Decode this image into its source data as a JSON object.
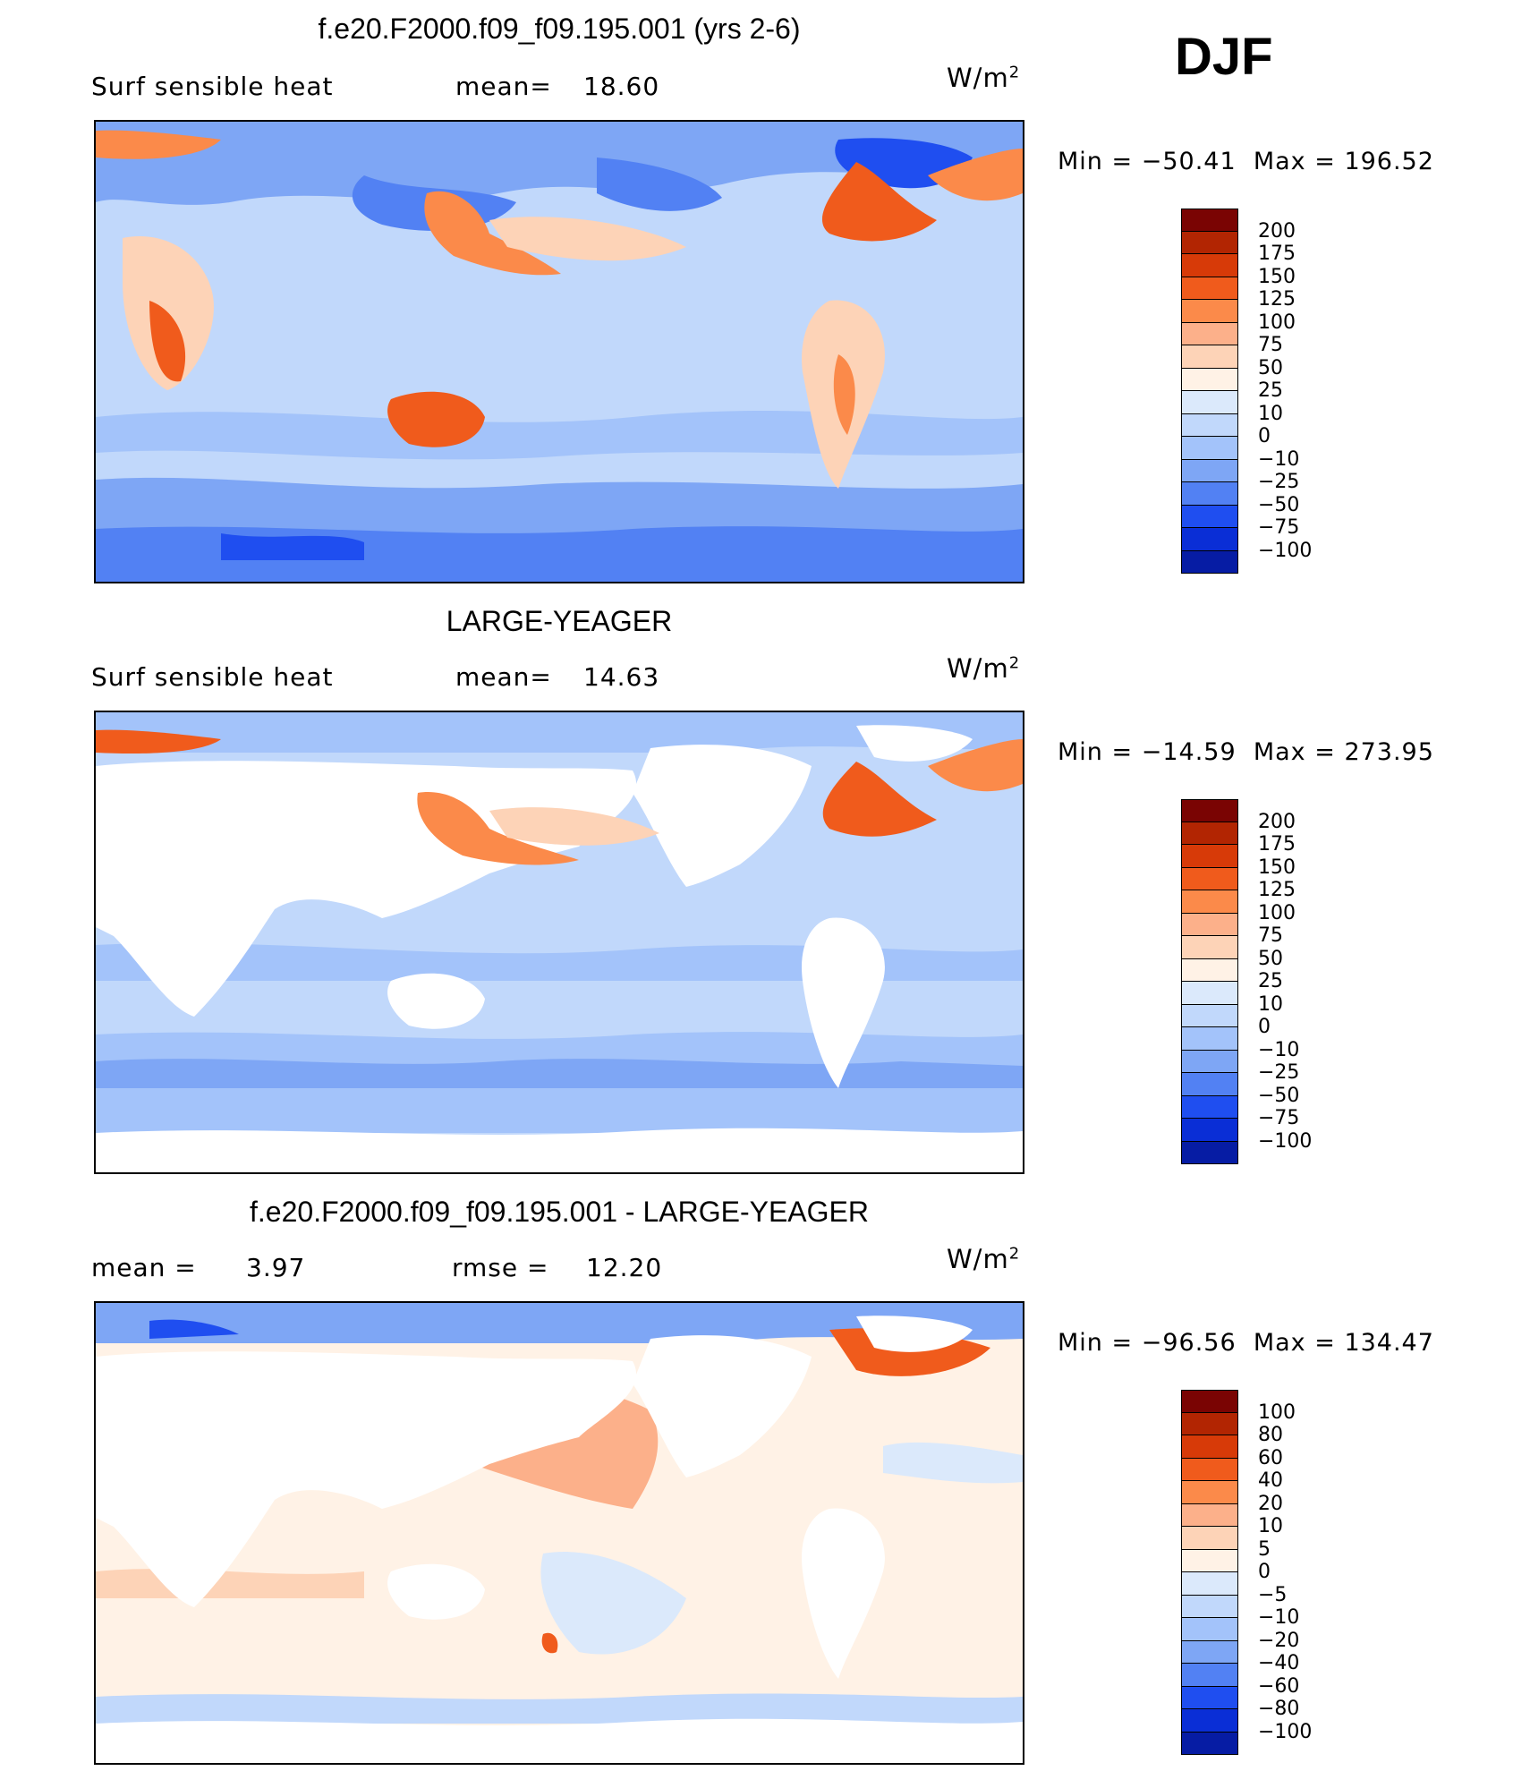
{
  "season": "DJF",
  "units": {
    "base": "W/m",
    "exp": "2"
  },
  "palettes": {
    "mean": [
      "#7a0403",
      "#b22502",
      "#d73a08",
      "#f05b1c",
      "#fb8a4a",
      "#fcb08a",
      "#fdd3b7",
      "#fff2e6",
      "#dbe9fb",
      "#c1d8fb",
      "#a3c3fa",
      "#7ea6f5",
      "#5281f3",
      "#1f4ef0",
      "#0a2ed6",
      "#061ca4",
      "#000c72"
    ],
    "diff": [
      "#7a0403",
      "#b22502",
      "#d73a08",
      "#f05b1c",
      "#fb8a4a",
      "#fcb08a",
      "#fdd3b7",
      "#fff2e6",
      "#dbe9fb",
      "#c1d8fb",
      "#a3c3fa",
      "#7ea6f5",
      "#5281f3",
      "#1f4ef0",
      "#0a2ed6",
      "#061ca4",
      "#000c72"
    ]
  },
  "panels": [
    {
      "title": "f.e20.F2000.f09_f09.195.001 (yrs 2-6)",
      "variable": "Surf  sensible  heat",
      "mean_label": "mean=",
      "mean_value": "18.60",
      "min_label": "Min  =",
      "min_value": "−50.41",
      "max_label": "Max  =",
      "max_value": "196.52",
      "levels": [
        "200",
        "175",
        "150",
        "125",
        "100",
        "75",
        "50",
        "25",
        "10",
        "0",
        "−10",
        "−25",
        "−50",
        "−75",
        "−100"
      ],
      "palette": "mean"
    },
    {
      "title": "LARGE-YEAGER",
      "variable": "Surf  sensible  heat",
      "mean_label": "mean=",
      "mean_value": "14.63",
      "min_label": "Min  =",
      "min_value": "−14.59",
      "max_label": "Max  =",
      "max_value": "273.95",
      "levels": [
        "200",
        "175",
        "150",
        "125",
        "100",
        "75",
        "50",
        "25",
        "10",
        "0",
        "−10",
        "−25",
        "−50",
        "−75",
        "−100"
      ],
      "palette": "mean"
    },
    {
      "title": "f.e20.F2000.f09_f09.195.001 - LARGE-YEAGER",
      "mean_label": "mean  =",
      "mean_value": "3.97",
      "rmse_label": "rmse  =",
      "rmse_value": "12.20",
      "min_label": "Min  =",
      "min_value": "−96.56",
      "max_label": "Max  =",
      "max_value": "134.47",
      "levels": [
        "100",
        "80",
        "60",
        "40",
        "20",
        "10",
        "5",
        "0",
        "−5",
        "−10",
        "−20",
        "−40",
        "−60",
        "−80",
        "−100"
      ],
      "palette": "diff"
    }
  ]
}
